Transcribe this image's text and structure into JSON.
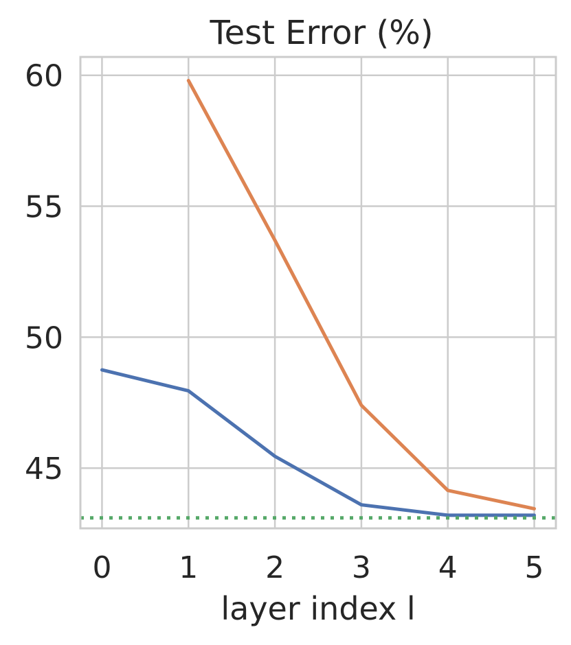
{
  "chart_data": {
    "type": "line",
    "title": "Test Error (%)",
    "xlabel": "layer index l",
    "ylabel": "",
    "x": [
      0,
      1,
      2,
      3,
      4,
      5
    ],
    "xticks": [
      "0",
      "1",
      "2",
      "3",
      "4",
      "5"
    ],
    "yticks": [
      "45",
      "50",
      "55",
      "60"
    ],
    "xlim": [
      -0.25,
      5.25
    ],
    "ylim": [
      42.7,
      60.7
    ],
    "grid": true,
    "legend": "none",
    "series": [
      {
        "color": "#4c72b0",
        "style": "solid",
        "x": [
          0,
          1,
          2,
          3,
          4,
          5
        ],
        "values": [
          48.75,
          47.95,
          45.45,
          43.6,
          43.2,
          43.2
        ]
      },
      {
        "color": "#dd8452",
        "style": "solid",
        "x": [
          1,
          2,
          3,
          4,
          5
        ],
        "values": [
          59.8,
          53.7,
          47.4,
          44.15,
          43.45
        ]
      },
      {
        "color": "#55a868",
        "style": "dotted",
        "x": [
          -0.25,
          5.25
        ],
        "values": [
          43.1,
          43.1
        ]
      }
    ]
  }
}
